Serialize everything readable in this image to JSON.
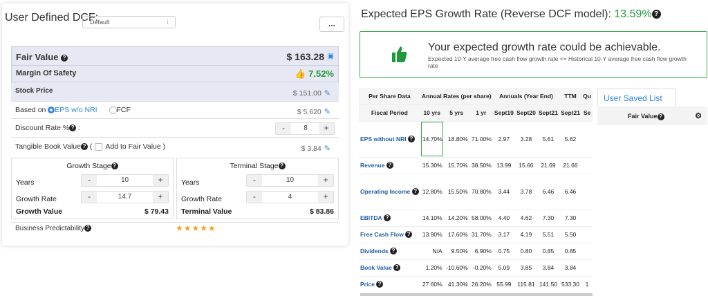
{
  "dcf": {
    "title": "User Defined DCF:",
    "model_select": "Default",
    "more_label": "..."
  },
  "fair_value": {
    "label": "Fair Value",
    "value": "$ 163.28"
  },
  "margin_of_safety": {
    "label": "Margin Of Safety",
    "value": "7.52%"
  },
  "stock_price": {
    "label": "Stock Price",
    "value": "$ 151.00"
  },
  "based_on": {
    "label": "Based on",
    "option1": "EPS w/o NRI",
    "option2": "FCF",
    "value": "$ 5.620"
  },
  "discount_rate": {
    "label": "Discount Rate %",
    "colon": ":",
    "value": "8"
  },
  "tangible_book": {
    "label": "Tangible Book Value",
    "open": "(",
    "add_label": "Add to Fair Value )",
    "value": "$ 3.84"
  },
  "growth_stage": {
    "title": "Growth Stage",
    "years_label": "Years",
    "years_value": "10",
    "rate_label": "Growth Rate",
    "rate_value": "14.7",
    "value_label": "Growth Value",
    "value": "$ 79.43"
  },
  "terminal_stage": {
    "title": "Terminal Stage",
    "years_label": "Years",
    "years_value": "10",
    "rate_label": "Growth Rate",
    "rate_value": "4",
    "value_label": "Terminal Value",
    "value": "$ 83.86"
  },
  "predictability": {
    "label": "Business Predictability",
    "stars": 5,
    "stars_text": "★★★★★"
  },
  "steppers": {
    "minus": "-",
    "plus": "+"
  },
  "eps_rate": {
    "title": "Expected EPS Growth Rate (Reverse DCF model):",
    "value": "13.59%"
  },
  "achievable": {
    "headline": "Your expected growth rate could be achievable.",
    "detail": "Expected 10-Y average free cash flow growth rate <= Historical 10-Y average free cash flow growth rate"
  },
  "table": {
    "group_headers": [
      "Per Share Data",
      "Annual Rates (per share)",
      "Annuals (Year End)",
      "TTM",
      "Qu"
    ],
    "col_headers": [
      "Fiscal Period",
      "10 yrs",
      "5 yrs",
      "1 yr",
      "Sept19",
      "Sept20",
      "Sept21",
      "Sept21",
      "Se"
    ],
    "rows": [
      {
        "name": "EPS without NRI",
        "cells": [
          "14.70%",
          "18.80%",
          "71.00%",
          "2.97",
          "3.28",
          "5.61",
          "5.62",
          ""
        ]
      },
      {
        "name": "Revenue",
        "cells": [
          "15.30%",
          "15.70%",
          "38.50%",
          "13.99",
          "15.66",
          "21.69",
          "21.66",
          ""
        ]
      },
      {
        "name": "Operating Income",
        "cells": [
          "12.80%",
          "15.50%",
          "70.80%",
          "3.44",
          "3.78",
          "6.46",
          "6.46",
          ""
        ]
      },
      {
        "name": "EBITDA",
        "cells": [
          "14.10%",
          "14.20%",
          "58.00%",
          "4.40",
          "4.62",
          "7.30",
          "7.30",
          ""
        ]
      },
      {
        "name": "Free Cash Flow",
        "cells": [
          "13.90%",
          "17.60%",
          "31.70%",
          "3.17",
          "4.19",
          "5.51",
          "5.50",
          ""
        ]
      },
      {
        "name": "Dividends",
        "cells": [
          "N/A",
          "9.50%",
          "6.90%",
          "0.75",
          "0.80",
          "0.85",
          "0.85",
          ""
        ]
      },
      {
        "name": "Book Value",
        "cells": [
          "1.20%",
          "-10.60%",
          "-0.20%",
          "5.09",
          "3.85",
          "3.84",
          "3.84",
          ""
        ]
      },
      {
        "name": "Price",
        "cells": [
          "27.60%",
          "41.30%",
          "26.20%",
          "55.99",
          "115.81",
          "141.50",
          "533.30",
          "1"
        ]
      }
    ]
  },
  "user_saved": {
    "tab": "User Saved List",
    "col": "Fair Value"
  },
  "colors": {
    "accent": "#2f86e0",
    "green": "#1f9a3a",
    "band": "#e6e9f3"
  }
}
